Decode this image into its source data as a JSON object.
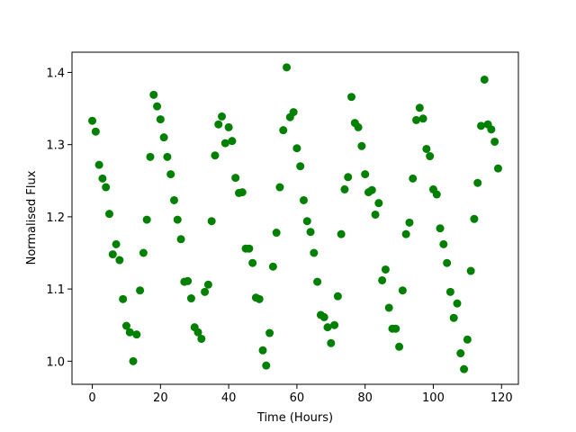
{
  "chart_data": {
    "type": "scatter",
    "x_label": "Time (Hours)",
    "y_label": "Normalised Flux",
    "color": "#008000",
    "x": [
      0,
      1,
      2,
      3,
      4,
      5,
      6,
      7,
      8,
      9,
      10,
      11,
      12,
      13,
      14,
      15,
      16,
      17,
      18,
      19,
      20,
      21,
      22,
      23,
      24,
      25,
      26,
      27,
      28,
      29,
      30,
      31,
      32,
      33,
      34,
      35,
      36,
      37,
      38,
      39,
      40,
      41,
      42,
      43,
      44,
      45,
      46,
      47,
      48,
      49,
      50,
      51,
      52,
      53,
      54,
      55,
      56,
      57,
      58,
      59,
      60,
      61,
      62,
      63,
      64,
      65,
      66,
      67,
      68,
      69,
      70,
      71,
      72,
      73,
      74,
      75,
      76,
      77,
      78,
      79,
      80,
      81,
      82,
      83,
      84,
      85,
      86,
      87,
      88,
      89,
      90,
      91,
      92,
      93,
      94,
      95,
      96,
      97,
      98,
      99,
      100,
      101,
      102,
      103,
      104,
      105,
      106,
      107,
      108,
      109,
      110,
      111,
      112,
      113,
      114,
      115,
      116,
      117,
      118,
      119
    ],
    "values": [
      1.333,
      1.318,
      1.272,
      1.253,
      1.241,
      1.204,
      1.148,
      1.162,
      1.14,
      1.086,
      1.049,
      1.04,
      1.0,
      1.037,
      1.098,
      1.15,
      1.196,
      1.283,
      1.369,
      1.353,
      1.335,
      1.31,
      1.283,
      1.259,
      1.223,
      1.196,
      1.169,
      1.11,
      1.111,
      1.087,
      1.047,
      1.04,
      1.031,
      1.096,
      1.106,
      1.194,
      1.285,
      1.328,
      1.339,
      1.302,
      1.324,
      1.305,
      1.254,
      1.233,
      1.234,
      1.156,
      1.156,
      1.136,
      1.088,
      1.086,
      1.015,
      0.994,
      1.039,
      1.131,
      1.178,
      1.241,
      1.32,
      1.407,
      1.338,
      1.345,
      1.295,
      1.27,
      1.223,
      1.194,
      1.179,
      1.15,
      1.11,
      1.064,
      1.061,
      1.047,
      1.025,
      1.05,
      1.09,
      1.176,
      1.238,
      1.255,
      1.366,
      1.33,
      1.324,
      1.298,
      1.259,
      1.234,
      1.237,
      1.203,
      1.219,
      1.112,
      1.127,
      1.074,
      1.045,
      1.045,
      1.02,
      1.098,
      1.176,
      1.192,
      1.253,
      1.334,
      1.351,
      1.336,
      1.294,
      1.284,
      1.238,
      1.231,
      1.184,
      1.162,
      1.136,
      1.096,
      1.06,
      1.08,
      1.011,
      0.989,
      1.03,
      1.125,
      1.197,
      1.247,
      1.326,
      1.39,
      1.328,
      1.321,
      1.304,
      1.267
    ],
    "xlim": [
      -5.95,
      124.95
    ],
    "xticks": [
      0,
      20,
      40,
      60,
      80,
      100,
      120
    ],
    "ylim": [
      0.968,
      1.428
    ],
    "yticks": [
      {
        "value": 1,
        "label": "1.0"
      },
      1.1,
      1.2,
      1.3,
      1.4
    ]
  }
}
